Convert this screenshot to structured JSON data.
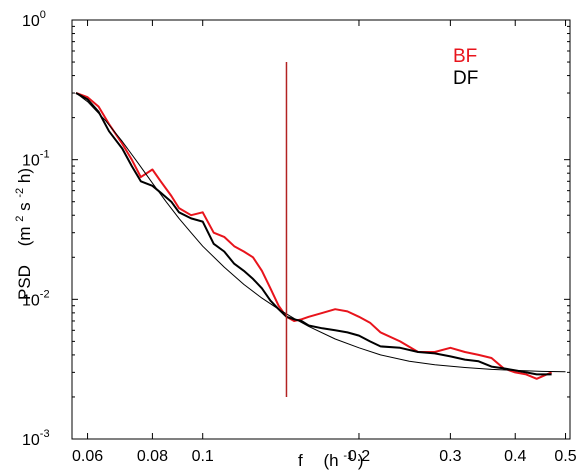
{
  "chart_data": {
    "type": "line",
    "xscale": "log",
    "yscale": "log",
    "xlim": [
      0.056,
      0.51
    ],
    "ylim": [
      0.001,
      1
    ],
    "grid": false,
    "legend_position": "top-right",
    "xlabel": {
      "main": "f",
      "unit_base": "(h",
      "unit_exp": "-1",
      "unit_close": ")"
    },
    "ylabel": {
      "main": "PSD",
      "unit_open": "(m",
      "sup1": "2",
      "mid": "s",
      "sup2": "-2",
      "unit_close": "h)"
    },
    "x_ticks": [
      {
        "value": 0.06,
        "label": "0.06"
      },
      {
        "value": 0.08,
        "label": "0.08"
      },
      {
        "value": 0.1,
        "label": "0.1"
      },
      {
        "value": 0.2,
        "label": "0.2"
      },
      {
        "value": 0.3,
        "label": "0.3"
      },
      {
        "value": 0.4,
        "label": "0.4"
      },
      {
        "value": 0.5,
        "label": "0.5"
      }
    ],
    "y_ticks": [
      {
        "value": 0.001,
        "base": "10",
        "exp": "-3"
      },
      {
        "value": 0.01,
        "base": "10",
        "exp": "-2"
      },
      {
        "value": 0.1,
        "base": "10",
        "exp": "-1"
      },
      {
        "value": 1,
        "base": "10",
        "exp": "0"
      }
    ],
    "vertical_marker": {
      "x": 0.145,
      "y_from": 0.002,
      "y_to": 0.5,
      "color": "#b22222"
    },
    "series": [
      {
        "name": "BF",
        "color": "#e8141c",
        "x": [
          0.057,
          0.06,
          0.063,
          0.066,
          0.07,
          0.073,
          0.076,
          0.08,
          0.083,
          0.087,
          0.09,
          0.095,
          0.1,
          0.105,
          0.11,
          0.115,
          0.12,
          0.125,
          0.13,
          0.135,
          0.14,
          0.145,
          0.15,
          0.155,
          0.16,
          0.17,
          0.18,
          0.19,
          0.2,
          0.21,
          0.22,
          0.24,
          0.26,
          0.28,
          0.3,
          0.32,
          0.34,
          0.36,
          0.38,
          0.4,
          0.42,
          0.44,
          0.46,
          0.47
        ],
        "y": [
          0.3,
          0.28,
          0.24,
          0.18,
          0.13,
          0.1,
          0.075,
          0.085,
          0.07,
          0.055,
          0.045,
          0.04,
          0.042,
          0.03,
          0.028,
          0.024,
          0.022,
          0.02,
          0.016,
          0.012,
          0.009,
          0.0075,
          0.007,
          0.0072,
          0.0075,
          0.008,
          0.0085,
          0.0082,
          0.0075,
          0.0068,
          0.0058,
          0.005,
          0.0042,
          0.0042,
          0.0045,
          0.0042,
          0.004,
          0.0038,
          0.0032,
          0.003,
          0.0029,
          0.0027,
          0.0029,
          0.003
        ]
      },
      {
        "name": "DF",
        "color": "#000000",
        "x": [
          0.057,
          0.06,
          0.063,
          0.066,
          0.07,
          0.073,
          0.076,
          0.08,
          0.083,
          0.087,
          0.09,
          0.095,
          0.1,
          0.105,
          0.11,
          0.115,
          0.12,
          0.125,
          0.13,
          0.135,
          0.14,
          0.145,
          0.15,
          0.155,
          0.16,
          0.17,
          0.18,
          0.19,
          0.2,
          0.21,
          0.22,
          0.24,
          0.26,
          0.28,
          0.3,
          0.32,
          0.34,
          0.36,
          0.38,
          0.4,
          0.42,
          0.44,
          0.46,
          0.47
        ],
        "y": [
          0.3,
          0.27,
          0.22,
          0.16,
          0.12,
          0.09,
          0.07,
          0.065,
          0.058,
          0.05,
          0.042,
          0.038,
          0.036,
          0.025,
          0.022,
          0.018,
          0.016,
          0.014,
          0.012,
          0.0098,
          0.0085,
          0.0075,
          0.0072,
          0.007,
          0.0065,
          0.0062,
          0.006,
          0.0058,
          0.0055,
          0.005,
          0.0046,
          0.0045,
          0.0042,
          0.0041,
          0.0039,
          0.0037,
          0.0036,
          0.0033,
          0.0032,
          0.0031,
          0.003,
          0.0029,
          0.0029,
          0.0029
        ]
      },
      {
        "name": "",
        "color": "#000000",
        "x": [
          0.057,
          0.06,
          0.065,
          0.07,
          0.075,
          0.08,
          0.085,
          0.09,
          0.095,
          0.1,
          0.11,
          0.12,
          0.13,
          0.14,
          0.15,
          0.16,
          0.18,
          0.2,
          0.22,
          0.25,
          0.28,
          0.32,
          0.36,
          0.4,
          0.45,
          0.5
        ],
        "y": [
          0.3,
          0.26,
          0.19,
          0.135,
          0.095,
          0.068,
          0.05,
          0.038,
          0.03,
          0.024,
          0.017,
          0.0128,
          0.0102,
          0.0085,
          0.0073,
          0.0064,
          0.0052,
          0.0045,
          0.004,
          0.0036,
          0.0034,
          0.00325,
          0.00315,
          0.0031,
          0.00305,
          0.00303
        ]
      }
    ]
  }
}
